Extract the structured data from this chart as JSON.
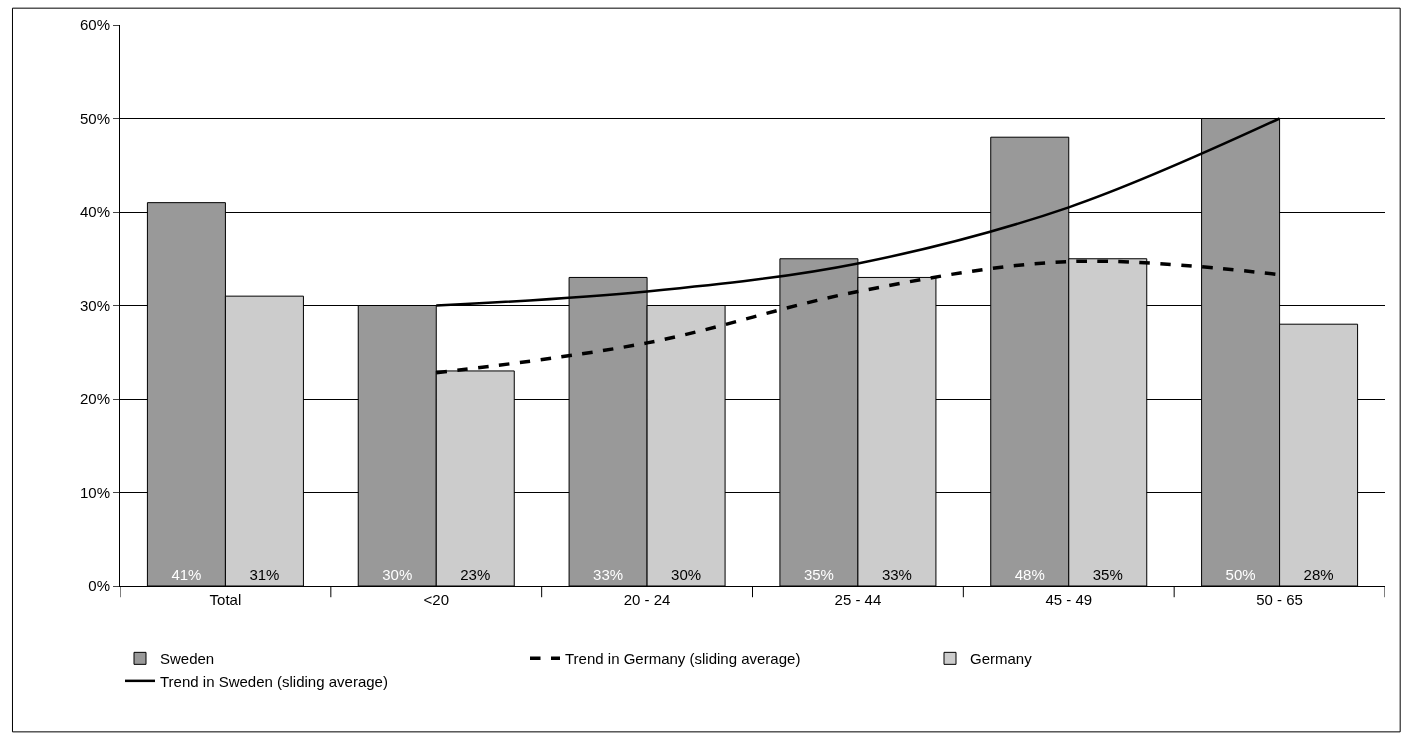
{
  "chart_data": {
    "type": "bar",
    "categories": [
      "Total",
      "<20",
      "20 - 24",
      "25 - 44",
      "45 - 49",
      "50 - 65"
    ],
    "series": [
      {
        "name": "Sweden",
        "color": "#999999",
        "values": [
          41,
          30,
          33,
          35,
          48,
          50
        ],
        "value_labels": [
          "41%",
          "30%",
          "33%",
          "35%",
          "48%",
          "50%"
        ]
      },
      {
        "name": "Trend in Germany (sliding average)",
        "type": "line",
        "line_style": "dashed",
        "color": "#000000",
        "values": [
          null,
          22.8,
          26,
          31.5,
          34.7,
          33.3
        ]
      },
      {
        "name": "Germany",
        "color": "#cccccc",
        "values": [
          31,
          23,
          30,
          33,
          35,
          28
        ],
        "value_labels": [
          "31%",
          "23%",
          "30%",
          "33%",
          "35%",
          "28%"
        ]
      },
      {
        "name": "Trend in Sweden (sliding average)",
        "type": "line",
        "line_style": "solid",
        "color": "#000000",
        "values": [
          null,
          30,
          31.5,
          34.5,
          40.5,
          50
        ]
      }
    ],
    "ylim": [
      0,
      60
    ],
    "yticks": [
      {
        "value": 0,
        "label": "0%"
      },
      {
        "value": 10,
        "label": "10%"
      },
      {
        "value": 20,
        "label": "20%"
      },
      {
        "value": 30,
        "label": "30%"
      },
      {
        "value": 40,
        "label": "40%"
      },
      {
        "value": 50,
        "label": "50%"
      },
      {
        "value": 60,
        "label": "60%"
      }
    ],
    "grid": "y",
    "legend": "bottom"
  }
}
